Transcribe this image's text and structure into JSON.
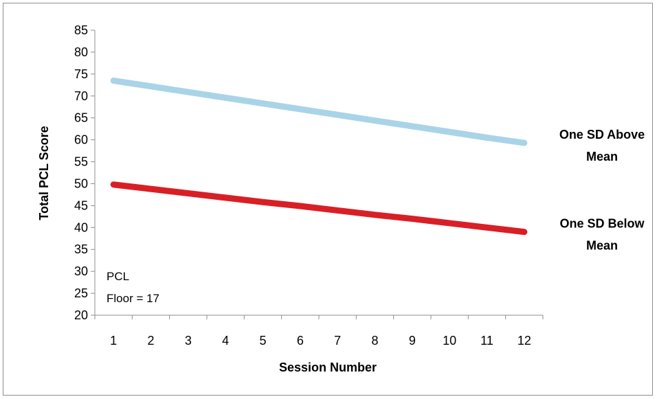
{
  "chart_data": {
    "type": "line",
    "xlabel": "Session Number",
    "ylabel": "Total PCL Score",
    "x": [
      1,
      2,
      3,
      4,
      5,
      6,
      7,
      8,
      9,
      10,
      11,
      12
    ],
    "ylim": [
      20,
      85
    ],
    "yticks": [
      20,
      25,
      30,
      35,
      40,
      45,
      50,
      55,
      60,
      65,
      70,
      75,
      80,
      85
    ],
    "grid": false,
    "series": [
      {
        "name_lines": [
          "One SD Above",
          "Mean"
        ],
        "color": "#a9d4e8",
        "values": [
          73.5,
          72.2,
          70.9,
          69.6,
          68.3,
          67.0,
          65.7,
          64.4,
          63.1,
          61.8,
          60.5,
          59.3
        ]
      },
      {
        "name_lines": [
          "One SD Below",
          "Mean"
        ],
        "color": "#d91f26",
        "values": [
          49.8,
          48.8,
          47.8,
          46.8,
          45.8,
          44.9,
          43.9,
          42.9,
          42.0,
          41.0,
          40.0,
          39.0
        ]
      }
    ],
    "annotation": [
      "PCL",
      "Floor = 17"
    ]
  }
}
